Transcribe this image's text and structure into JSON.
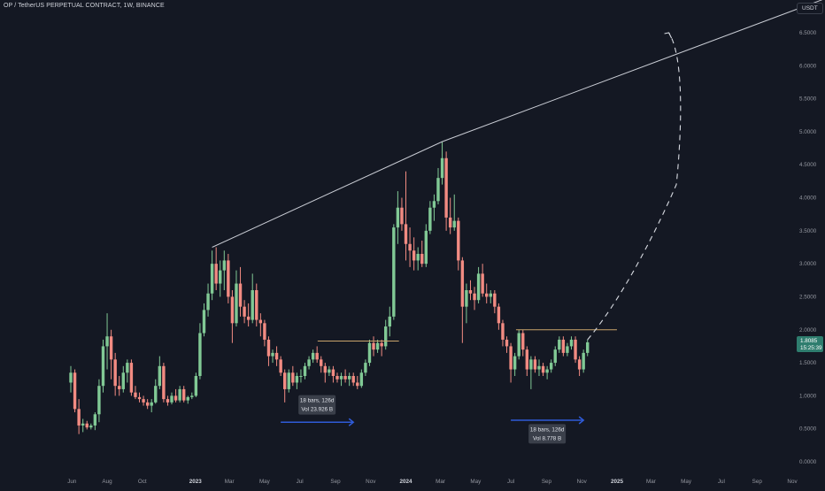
{
  "header": {
    "symbol_title": "OP / TetherUS PERPETUAL CONTRACT, 1W, BINANCE",
    "currency_label": "USDT"
  },
  "price_badge": {
    "price": "1.8085",
    "countdown": "15:25:39",
    "color": "#2e7d6e"
  },
  "colors": {
    "background": "#141823",
    "up": "#81c995",
    "down": "#f28b82",
    "trendline": "#c9ccd4",
    "resistance": "#c9a46b",
    "arrow": "#2f5bd8",
    "axis_text": "#9598a1"
  },
  "chart_data": {
    "type": "candlestick",
    "y_axis": {
      "ticks": [
        "0.0000",
        "0.5000",
        "1.0000",
        "1.5000",
        "2.0000",
        "2.5000",
        "3.0000",
        "3.5000",
        "4.0000",
        "4.5000",
        "5.0000",
        "5.5000",
        "6.0000",
        "6.5000"
      ],
      "range": [
        0,
        6.75
      ],
      "position": "right"
    },
    "x_axis": {
      "ticks": [
        "Jun",
        "Aug",
        "Oct",
        "2023",
        "Mar",
        "May",
        "Jul",
        "Sep",
        "Nov",
        "2024",
        "Mar",
        "May",
        "Jul",
        "Sep",
        "Nov",
        "2025",
        "Mar",
        "May",
        "Jul",
        "Sep",
        "Nov"
      ],
      "bold_ticks": [
        "2023",
        "2024",
        "2025"
      ],
      "tick_dates": [
        "2022-06-01",
        "2022-08-01",
        "2022-10-01",
        "2023-01-01",
        "2023-03-01",
        "2023-05-01",
        "2023-07-01",
        "2023-09-01",
        "2023-11-01",
        "2024-01-01",
        "2024-03-01",
        "2024-05-01",
        "2024-07-01",
        "2024-09-01",
        "2024-11-01",
        "2025-01-01",
        "2025-03-01",
        "2025-05-01",
        "2025-07-01",
        "2025-09-01",
        "2025-11-01"
      ],
      "range": [
        "2022-05-23",
        "2025-12-23"
      ]
    },
    "candles": [
      {
        "date": "2022-05-30",
        "o": 1.2,
        "h": 1.45,
        "l": 1.05,
        "c": 1.35
      },
      {
        "date": "2022-06-06",
        "o": 1.35,
        "h": 1.4,
        "l": 0.75,
        "c": 0.8
      },
      {
        "date": "2022-06-13",
        "o": 0.8,
        "h": 0.95,
        "l": 0.42,
        "c": 0.55
      },
      {
        "date": "2022-06-20",
        "o": 0.55,
        "h": 0.65,
        "l": 0.45,
        "c": 0.58
      },
      {
        "date": "2022-06-27",
        "o": 0.58,
        "h": 0.62,
        "l": 0.49,
        "c": 0.52
      },
      {
        "date": "2022-07-04",
        "o": 0.52,
        "h": 0.58,
        "l": 0.49,
        "c": 0.55
      },
      {
        "date": "2022-07-11",
        "o": 0.55,
        "h": 0.75,
        "l": 0.48,
        "c": 0.72
      },
      {
        "date": "2022-07-18",
        "o": 0.72,
        "h": 1.25,
        "l": 0.6,
        "c": 1.15
      },
      {
        "date": "2022-07-25",
        "o": 1.15,
        "h": 1.85,
        "l": 1.05,
        "c": 1.75
      },
      {
        "date": "2022-08-01",
        "o": 1.75,
        "h": 2.25,
        "l": 1.4,
        "c": 1.9
      },
      {
        "date": "2022-08-08",
        "o": 1.9,
        "h": 2.0,
        "l": 1.25,
        "c": 1.55
      },
      {
        "date": "2022-08-15",
        "o": 1.55,
        "h": 1.65,
        "l": 1.0,
        "c": 1.15
      },
      {
        "date": "2022-08-22",
        "o": 1.15,
        "h": 1.3,
        "l": 1.0,
        "c": 1.1
      },
      {
        "date": "2022-08-29",
        "o": 1.1,
        "h": 1.45,
        "l": 1.05,
        "c": 1.35
      },
      {
        "date": "2022-09-05",
        "o": 1.35,
        "h": 1.55,
        "l": 1.2,
        "c": 1.5
      },
      {
        "date": "2022-09-12",
        "o": 1.5,
        "h": 1.55,
        "l": 1.0,
        "c": 1.05
      },
      {
        "date": "2022-09-19",
        "o": 1.05,
        "h": 1.15,
        "l": 0.95,
        "c": 0.98
      },
      {
        "date": "2022-09-26",
        "o": 0.98,
        "h": 1.05,
        "l": 0.9,
        "c": 0.95
      },
      {
        "date": "2022-10-03",
        "o": 0.95,
        "h": 1.0,
        "l": 0.85,
        "c": 0.9
      },
      {
        "date": "2022-10-10",
        "o": 0.9,
        "h": 0.95,
        "l": 0.8,
        "c": 0.85
      },
      {
        "date": "2022-10-17",
        "o": 0.85,
        "h": 0.95,
        "l": 0.75,
        "c": 0.9
      },
      {
        "date": "2022-10-24",
        "o": 0.9,
        "h": 1.25,
        "l": 0.88,
        "c": 1.15
      },
      {
        "date": "2022-10-31",
        "o": 1.15,
        "h": 1.6,
        "l": 1.1,
        "c": 1.45
      },
      {
        "date": "2022-11-07",
        "o": 1.45,
        "h": 1.5,
        "l": 0.9,
        "c": 0.95
      },
      {
        "date": "2022-11-14",
        "o": 0.95,
        "h": 1.0,
        "l": 0.85,
        "c": 0.9
      },
      {
        "date": "2022-11-21",
        "o": 0.9,
        "h": 1.05,
        "l": 0.87,
        "c": 1.0
      },
      {
        "date": "2022-11-28",
        "o": 1.0,
        "h": 1.1,
        "l": 0.9,
        "c": 0.93
      },
      {
        "date": "2022-12-05",
        "o": 0.93,
        "h": 1.15,
        "l": 0.9,
        "c": 1.1
      },
      {
        "date": "2022-12-12",
        "o": 1.1,
        "h": 1.15,
        "l": 0.9,
        "c": 0.93
      },
      {
        "date": "2022-12-19",
        "o": 0.93,
        "h": 1.0,
        "l": 0.88,
        "c": 0.98
      },
      {
        "date": "2022-12-26",
        "o": 0.98,
        "h": 1.05,
        "l": 0.95,
        "c": 1.0
      },
      {
        "date": "2023-01-02",
        "o": 1.0,
        "h": 1.35,
        "l": 0.98,
        "c": 1.3
      },
      {
        "date": "2023-01-09",
        "o": 1.3,
        "h": 2.1,
        "l": 1.25,
        "c": 1.95
      },
      {
        "date": "2023-01-16",
        "o": 1.95,
        "h": 2.4,
        "l": 1.9,
        "c": 2.3
      },
      {
        "date": "2023-01-23",
        "o": 2.3,
        "h": 2.7,
        "l": 2.2,
        "c": 2.55
      },
      {
        "date": "2023-01-30",
        "o": 2.55,
        "h": 3.2,
        "l": 2.45,
        "c": 3.0
      },
      {
        "date": "2023-02-06",
        "o": 3.0,
        "h": 3.25,
        "l": 2.6,
        "c": 2.7
      },
      {
        "date": "2023-02-13",
        "o": 2.7,
        "h": 3.05,
        "l": 2.5,
        "c": 2.9
      },
      {
        "date": "2023-02-20",
        "o": 2.9,
        "h": 3.2,
        "l": 2.6,
        "c": 3.05
      },
      {
        "date": "2023-02-27",
        "o": 3.05,
        "h": 3.15,
        "l": 2.4,
        "c": 2.5
      },
      {
        "date": "2023-03-06",
        "o": 2.5,
        "h": 2.6,
        "l": 1.8,
        "c": 2.1
      },
      {
        "date": "2023-03-13",
        "o": 2.1,
        "h": 2.9,
        "l": 2.05,
        "c": 2.7
      },
      {
        "date": "2023-03-20",
        "o": 2.7,
        "h": 2.95,
        "l": 2.2,
        "c": 2.35
      },
      {
        "date": "2023-03-27",
        "o": 2.35,
        "h": 2.45,
        "l": 2.1,
        "c": 2.2
      },
      {
        "date": "2023-04-03",
        "o": 2.2,
        "h": 2.4,
        "l": 2.05,
        "c": 2.15
      },
      {
        "date": "2023-04-10",
        "o": 2.15,
        "h": 2.85,
        "l": 2.1,
        "c": 2.6
      },
      {
        "date": "2023-04-17",
        "o": 2.6,
        "h": 2.7,
        "l": 2.05,
        "c": 2.15
      },
      {
        "date": "2023-04-24",
        "o": 2.15,
        "h": 2.25,
        "l": 1.9,
        "c": 2.1
      },
      {
        "date": "2023-05-01",
        "o": 2.1,
        "h": 2.15,
        "l": 1.75,
        "c": 1.85
      },
      {
        "date": "2023-05-08",
        "o": 1.85,
        "h": 1.9,
        "l": 1.45,
        "c": 1.6
      },
      {
        "date": "2023-05-15",
        "o": 1.6,
        "h": 1.7,
        "l": 1.5,
        "c": 1.65
      },
      {
        "date": "2023-05-22",
        "o": 1.65,
        "h": 1.75,
        "l": 1.45,
        "c": 1.55
      },
      {
        "date": "2023-05-29",
        "o": 1.55,
        "h": 1.6,
        "l": 1.3,
        "c": 1.35
      },
      {
        "date": "2023-06-05",
        "o": 1.35,
        "h": 1.4,
        "l": 0.9,
        "c": 1.1
      },
      {
        "date": "2023-06-12",
        "o": 1.1,
        "h": 1.4,
        "l": 1.05,
        "c": 1.35
      },
      {
        "date": "2023-06-19",
        "o": 1.35,
        "h": 1.45,
        "l": 1.15,
        "c": 1.2
      },
      {
        "date": "2023-06-26",
        "o": 1.2,
        "h": 1.35,
        "l": 1.1,
        "c": 1.3
      },
      {
        "date": "2023-07-03",
        "o": 1.3,
        "h": 1.4,
        "l": 1.2,
        "c": 1.3
      },
      {
        "date": "2023-07-10",
        "o": 1.3,
        "h": 1.5,
        "l": 1.25,
        "c": 1.45
      },
      {
        "date": "2023-07-17",
        "o": 1.45,
        "h": 1.6,
        "l": 1.4,
        "c": 1.55
      },
      {
        "date": "2023-07-24",
        "o": 1.55,
        "h": 1.7,
        "l": 1.5,
        "c": 1.65
      },
      {
        "date": "2023-07-31",
        "o": 1.65,
        "h": 1.75,
        "l": 1.5,
        "c": 1.55
      },
      {
        "date": "2023-08-07",
        "o": 1.55,
        "h": 1.6,
        "l": 1.35,
        "c": 1.45
      },
      {
        "date": "2023-08-14",
        "o": 1.45,
        "h": 1.5,
        "l": 1.2,
        "c": 1.35
      },
      {
        "date": "2023-08-21",
        "o": 1.35,
        "h": 1.45,
        "l": 1.3,
        "c": 1.4
      },
      {
        "date": "2023-08-28",
        "o": 1.4,
        "h": 1.45,
        "l": 1.2,
        "c": 1.3
      },
      {
        "date": "2023-09-04",
        "o": 1.3,
        "h": 1.35,
        "l": 1.2,
        "c": 1.25
      },
      {
        "date": "2023-09-11",
        "o": 1.25,
        "h": 1.35,
        "l": 1.15,
        "c": 1.3
      },
      {
        "date": "2023-09-18",
        "o": 1.3,
        "h": 1.4,
        "l": 1.2,
        "c": 1.25
      },
      {
        "date": "2023-09-25",
        "o": 1.25,
        "h": 1.35,
        "l": 1.15,
        "c": 1.3
      },
      {
        "date": "2023-10-02",
        "o": 1.3,
        "h": 1.35,
        "l": 1.15,
        "c": 1.2
      },
      {
        "date": "2023-10-09",
        "o": 1.2,
        "h": 1.3,
        "l": 1.1,
        "c": 1.15
      },
      {
        "date": "2023-10-16",
        "o": 1.15,
        "h": 1.4,
        "l": 1.12,
        "c": 1.35
      },
      {
        "date": "2023-10-23",
        "o": 1.35,
        "h": 1.55,
        "l": 1.3,
        "c": 1.5
      },
      {
        "date": "2023-10-30",
        "o": 1.5,
        "h": 1.85,
        "l": 1.45,
        "c": 1.8
      },
      {
        "date": "2023-11-06",
        "o": 1.8,
        "h": 1.9,
        "l": 1.6,
        "c": 1.7
      },
      {
        "date": "2023-11-13",
        "o": 1.7,
        "h": 1.85,
        "l": 1.65,
        "c": 1.8
      },
      {
        "date": "2023-11-20",
        "o": 1.8,
        "h": 1.85,
        "l": 1.6,
        "c": 1.75
      },
      {
        "date": "2023-11-27",
        "o": 1.75,
        "h": 2.15,
        "l": 1.7,
        "c": 2.05
      },
      {
        "date": "2023-12-04",
        "o": 2.05,
        "h": 2.35,
        "l": 1.9,
        "c": 2.2
      },
      {
        "date": "2023-12-11",
        "o": 2.2,
        "h": 3.6,
        "l": 2.15,
        "c": 3.55
      },
      {
        "date": "2023-12-18",
        "o": 3.55,
        "h": 4.1,
        "l": 3.3,
        "c": 3.85
      },
      {
        "date": "2023-12-25",
        "o": 3.85,
        "h": 4.0,
        "l": 3.5,
        "c": 3.6
      },
      {
        "date": "2024-01-01",
        "o": 3.6,
        "h": 4.4,
        "l": 3.05,
        "c": 3.3
      },
      {
        "date": "2024-01-08",
        "o": 3.3,
        "h": 3.55,
        "l": 2.95,
        "c": 3.2
      },
      {
        "date": "2024-01-15",
        "o": 3.2,
        "h": 3.4,
        "l": 2.9,
        "c": 3.05
      },
      {
        "date": "2024-01-22",
        "o": 3.05,
        "h": 3.25,
        "l": 2.9,
        "c": 3.15
      },
      {
        "date": "2024-01-29",
        "o": 3.15,
        "h": 3.35,
        "l": 2.95,
        "c": 3.0
      },
      {
        "date": "2024-02-05",
        "o": 3.0,
        "h": 3.6,
        "l": 2.95,
        "c": 3.5
      },
      {
        "date": "2024-02-12",
        "o": 3.5,
        "h": 3.95,
        "l": 3.45,
        "c": 3.85
      },
      {
        "date": "2024-02-19",
        "o": 3.85,
        "h": 4.05,
        "l": 3.65,
        "c": 3.95
      },
      {
        "date": "2024-02-26",
        "o": 3.95,
        "h": 4.45,
        "l": 3.9,
        "c": 4.3
      },
      {
        "date": "2024-03-04",
        "o": 4.3,
        "h": 4.85,
        "l": 4.2,
        "c": 4.6
      },
      {
        "date": "2024-03-11",
        "o": 4.6,
        "h": 4.7,
        "l": 3.5,
        "c": 3.7
      },
      {
        "date": "2024-03-18",
        "o": 3.7,
        "h": 4.0,
        "l": 3.45,
        "c": 3.55
      },
      {
        "date": "2024-03-25",
        "o": 3.55,
        "h": 4.05,
        "l": 3.5,
        "c": 3.65
      },
      {
        "date": "2024-04-01",
        "o": 3.65,
        "h": 3.7,
        "l": 2.9,
        "c": 3.05
      },
      {
        "date": "2024-04-08",
        "o": 3.05,
        "h": 3.1,
        "l": 1.8,
        "c": 2.35
      },
      {
        "date": "2024-04-15",
        "o": 2.35,
        "h": 2.7,
        "l": 2.1,
        "c": 2.6
      },
      {
        "date": "2024-04-22",
        "o": 2.6,
        "h": 2.75,
        "l": 2.45,
        "c": 2.55
      },
      {
        "date": "2024-04-29",
        "o": 2.55,
        "h": 2.65,
        "l": 2.3,
        "c": 2.45
      },
      {
        "date": "2024-05-06",
        "o": 2.45,
        "h": 2.95,
        "l": 2.4,
        "c": 2.85
      },
      {
        "date": "2024-05-13",
        "o": 2.85,
        "h": 3.0,
        "l": 2.5,
        "c": 2.55
      },
      {
        "date": "2024-05-20",
        "o": 2.55,
        "h": 2.7,
        "l": 2.4,
        "c": 2.5
      },
      {
        "date": "2024-05-27",
        "o": 2.5,
        "h": 2.6,
        "l": 2.4,
        "c": 2.55
      },
      {
        "date": "2024-06-03",
        "o": 2.55,
        "h": 2.6,
        "l": 2.25,
        "c": 2.35
      },
      {
        "date": "2024-06-10",
        "o": 2.35,
        "h": 2.4,
        "l": 2.0,
        "c": 2.1
      },
      {
        "date": "2024-06-17",
        "o": 2.1,
        "h": 2.15,
        "l": 1.75,
        "c": 1.85
      },
      {
        "date": "2024-06-24",
        "o": 1.85,
        "h": 1.9,
        "l": 1.65,
        "c": 1.75
      },
      {
        "date": "2024-07-01",
        "o": 1.75,
        "h": 1.8,
        "l": 1.2,
        "c": 1.4
      },
      {
        "date": "2024-07-08",
        "o": 1.4,
        "h": 1.65,
        "l": 1.3,
        "c": 1.6
      },
      {
        "date": "2024-07-15",
        "o": 1.6,
        "h": 2.0,
        "l": 1.55,
        "c": 1.95
      },
      {
        "date": "2024-07-22",
        "o": 1.95,
        "h": 2.0,
        "l": 1.6,
        "c": 1.7
      },
      {
        "date": "2024-07-29",
        "o": 1.7,
        "h": 1.75,
        "l": 1.3,
        "c": 1.4
      },
      {
        "date": "2024-08-05",
        "o": 1.4,
        "h": 1.6,
        "l": 1.1,
        "c": 1.55
      },
      {
        "date": "2024-08-12",
        "o": 1.55,
        "h": 1.6,
        "l": 1.35,
        "c": 1.4
      },
      {
        "date": "2024-08-19",
        "o": 1.4,
        "h": 1.55,
        "l": 1.3,
        "c": 1.45
      },
      {
        "date": "2024-08-26",
        "o": 1.45,
        "h": 1.5,
        "l": 1.3,
        "c": 1.35
      },
      {
        "date": "2024-09-02",
        "o": 1.35,
        "h": 1.45,
        "l": 1.25,
        "c": 1.4
      },
      {
        "date": "2024-09-09",
        "o": 1.4,
        "h": 1.55,
        "l": 1.35,
        "c": 1.5
      },
      {
        "date": "2024-09-16",
        "o": 1.5,
        "h": 1.75,
        "l": 1.45,
        "c": 1.7
      },
      {
        "date": "2024-09-23",
        "o": 1.7,
        "h": 1.9,
        "l": 1.65,
        "c": 1.85
      },
      {
        "date": "2024-09-30",
        "o": 1.85,
        "h": 1.9,
        "l": 1.6,
        "c": 1.65
      },
      {
        "date": "2024-10-07",
        "o": 1.65,
        "h": 1.8,
        "l": 1.6,
        "c": 1.75
      },
      {
        "date": "2024-10-14",
        "o": 1.75,
        "h": 1.9,
        "l": 1.7,
        "c": 1.85
      },
      {
        "date": "2024-10-21",
        "o": 1.85,
        "h": 1.9,
        "l": 1.5,
        "c": 1.55
      },
      {
        "date": "2024-10-28",
        "o": 1.55,
        "h": 1.6,
        "l": 1.3,
        "c": 1.4
      },
      {
        "date": "2024-11-04",
        "o": 1.4,
        "h": 1.7,
        "l": 1.35,
        "c": 1.65
      },
      {
        "date": "2024-11-11",
        "o": 1.65,
        "h": 1.85,
        "l": 1.6,
        "c": 1.81
      }
    ],
    "trendline": {
      "points": [
        {
          "date": "2023-01-30",
          "price": 3.25
        },
        {
          "date": "2024-03-04",
          "price": 4.85
        },
        {
          "date": "2025-12-23",
          "price": 7.0
        }
      ]
    },
    "resistance_lines": [
      {
        "from": "2023-08-01",
        "to": "2023-12-20",
        "price": 1.83
      },
      {
        "from": "2024-07-10",
        "to": "2025-01-01",
        "price": 2.0
      }
    ],
    "projection": {
      "style": "dashed",
      "points": [
        {
          "date": "2024-11-11",
          "price": 1.85
        },
        {
          "date": "2025-02-01",
          "price": 2.7
        },
        {
          "date": "2025-04-14",
          "price": 4.2
        },
        {
          "date": "2025-04-28",
          "price": 5.6
        },
        {
          "date": "2025-04-01",
          "price": 6.5
        }
      ]
    },
    "measure_annotations": [
      {
        "bars_label": "18 bars, 126d",
        "vol_label": "Vol 23.926 B",
        "from": "2023-05-29",
        "to": "2023-10-02",
        "arrow_price": 0.6,
        "label_price": 0.89
      },
      {
        "bars_label": "18 bars, 126d",
        "vol_label": "Vol 8.778 B",
        "from": "2024-07-01",
        "to": "2024-11-04",
        "arrow_price": 0.63,
        "label_price": 0.45
      }
    ]
  }
}
